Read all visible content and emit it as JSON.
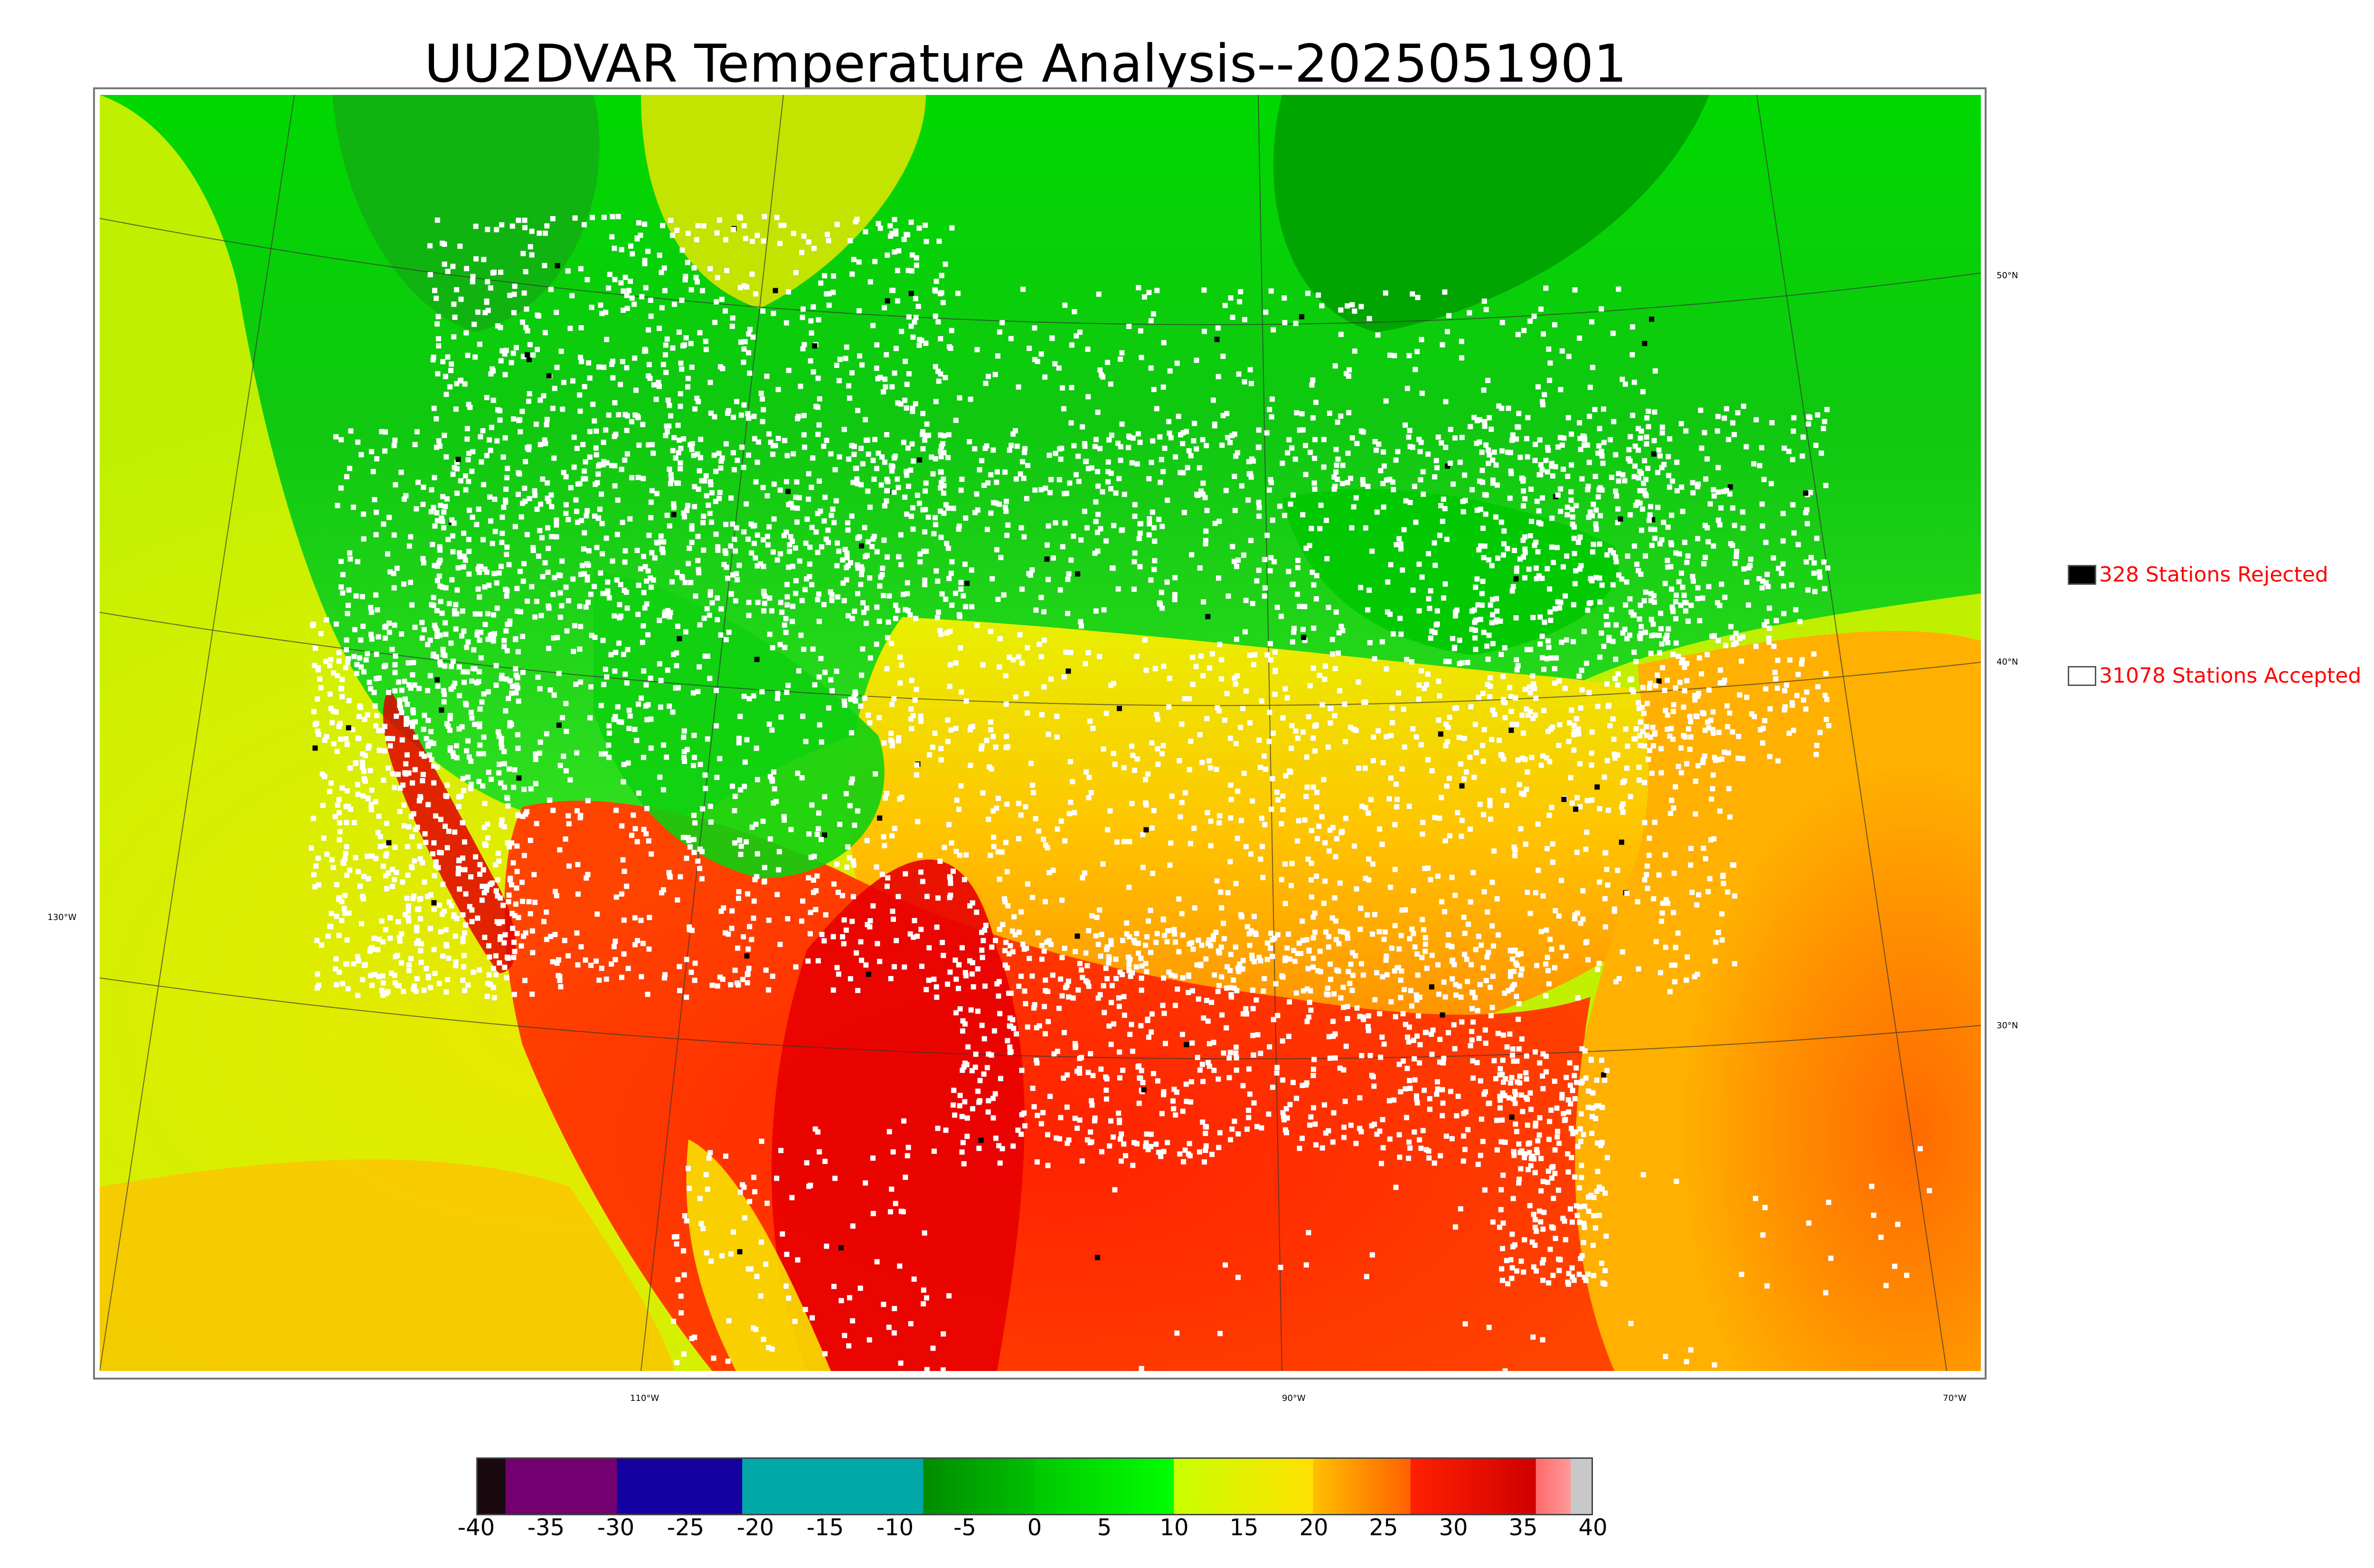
{
  "title": "UU2DVAR Temperature Analysis--2025051901",
  "lat_labels": [
    {
      "text": "50°N"
    },
    {
      "text": "40°N"
    },
    {
      "text": "30°N"
    }
  ],
  "lon_labels": [
    {
      "text": "130°W"
    },
    {
      "text": "110°W"
    },
    {
      "text": "90°W"
    },
    {
      "text": "70°W"
    }
  ],
  "legend": {
    "rejected": {
      "label": "328 Stations Rejected",
      "color": "#000000"
    },
    "accepted": {
      "label": "31078 Stations Accepted",
      "color": "#ffffff"
    }
  },
  "colorbar": {
    "min": -40,
    "max": 40,
    "ticks": [
      "-40",
      "-35",
      "-30",
      "-25",
      "-20",
      "-15",
      "-10",
      "-5",
      "0",
      "5",
      "10",
      "15",
      "20",
      "25",
      "30",
      "35",
      "40"
    ],
    "segments": [
      {
        "from": -40,
        "to": -38,
        "color": "#1a0a10"
      },
      {
        "from": -38,
        "to": -30,
        "color": "#730070"
      },
      {
        "from": -30,
        "to": -21,
        "color": "#1500a0"
      },
      {
        "from": -21,
        "to": -8,
        "color": "#00a8a8"
      },
      {
        "from": -8,
        "to": 0,
        "color": "#008c00",
        "to_color": "#00c000"
      },
      {
        "from": 0,
        "to": 10,
        "color": "#00c800",
        "to_color": "#00ff00"
      },
      {
        "from": 10,
        "to": 20,
        "color": "#c8ff00",
        "to_color": "#ffe000"
      },
      {
        "from": 20,
        "to": 27,
        "color": "#ffc000",
        "to_color": "#ff6000"
      },
      {
        "from": 27,
        "to": 36,
        "color": "#ff2000",
        "to_color": "#d00000"
      },
      {
        "from": 36,
        "to": 38.5,
        "color": "#ff6a6a",
        "to_color": "#ff9a9a"
      },
      {
        "from": 38.5,
        "to": 40,
        "color": "#c8c8c8"
      }
    ]
  },
  "stations": {
    "accepted": 31078,
    "rejected": 328
  }
}
